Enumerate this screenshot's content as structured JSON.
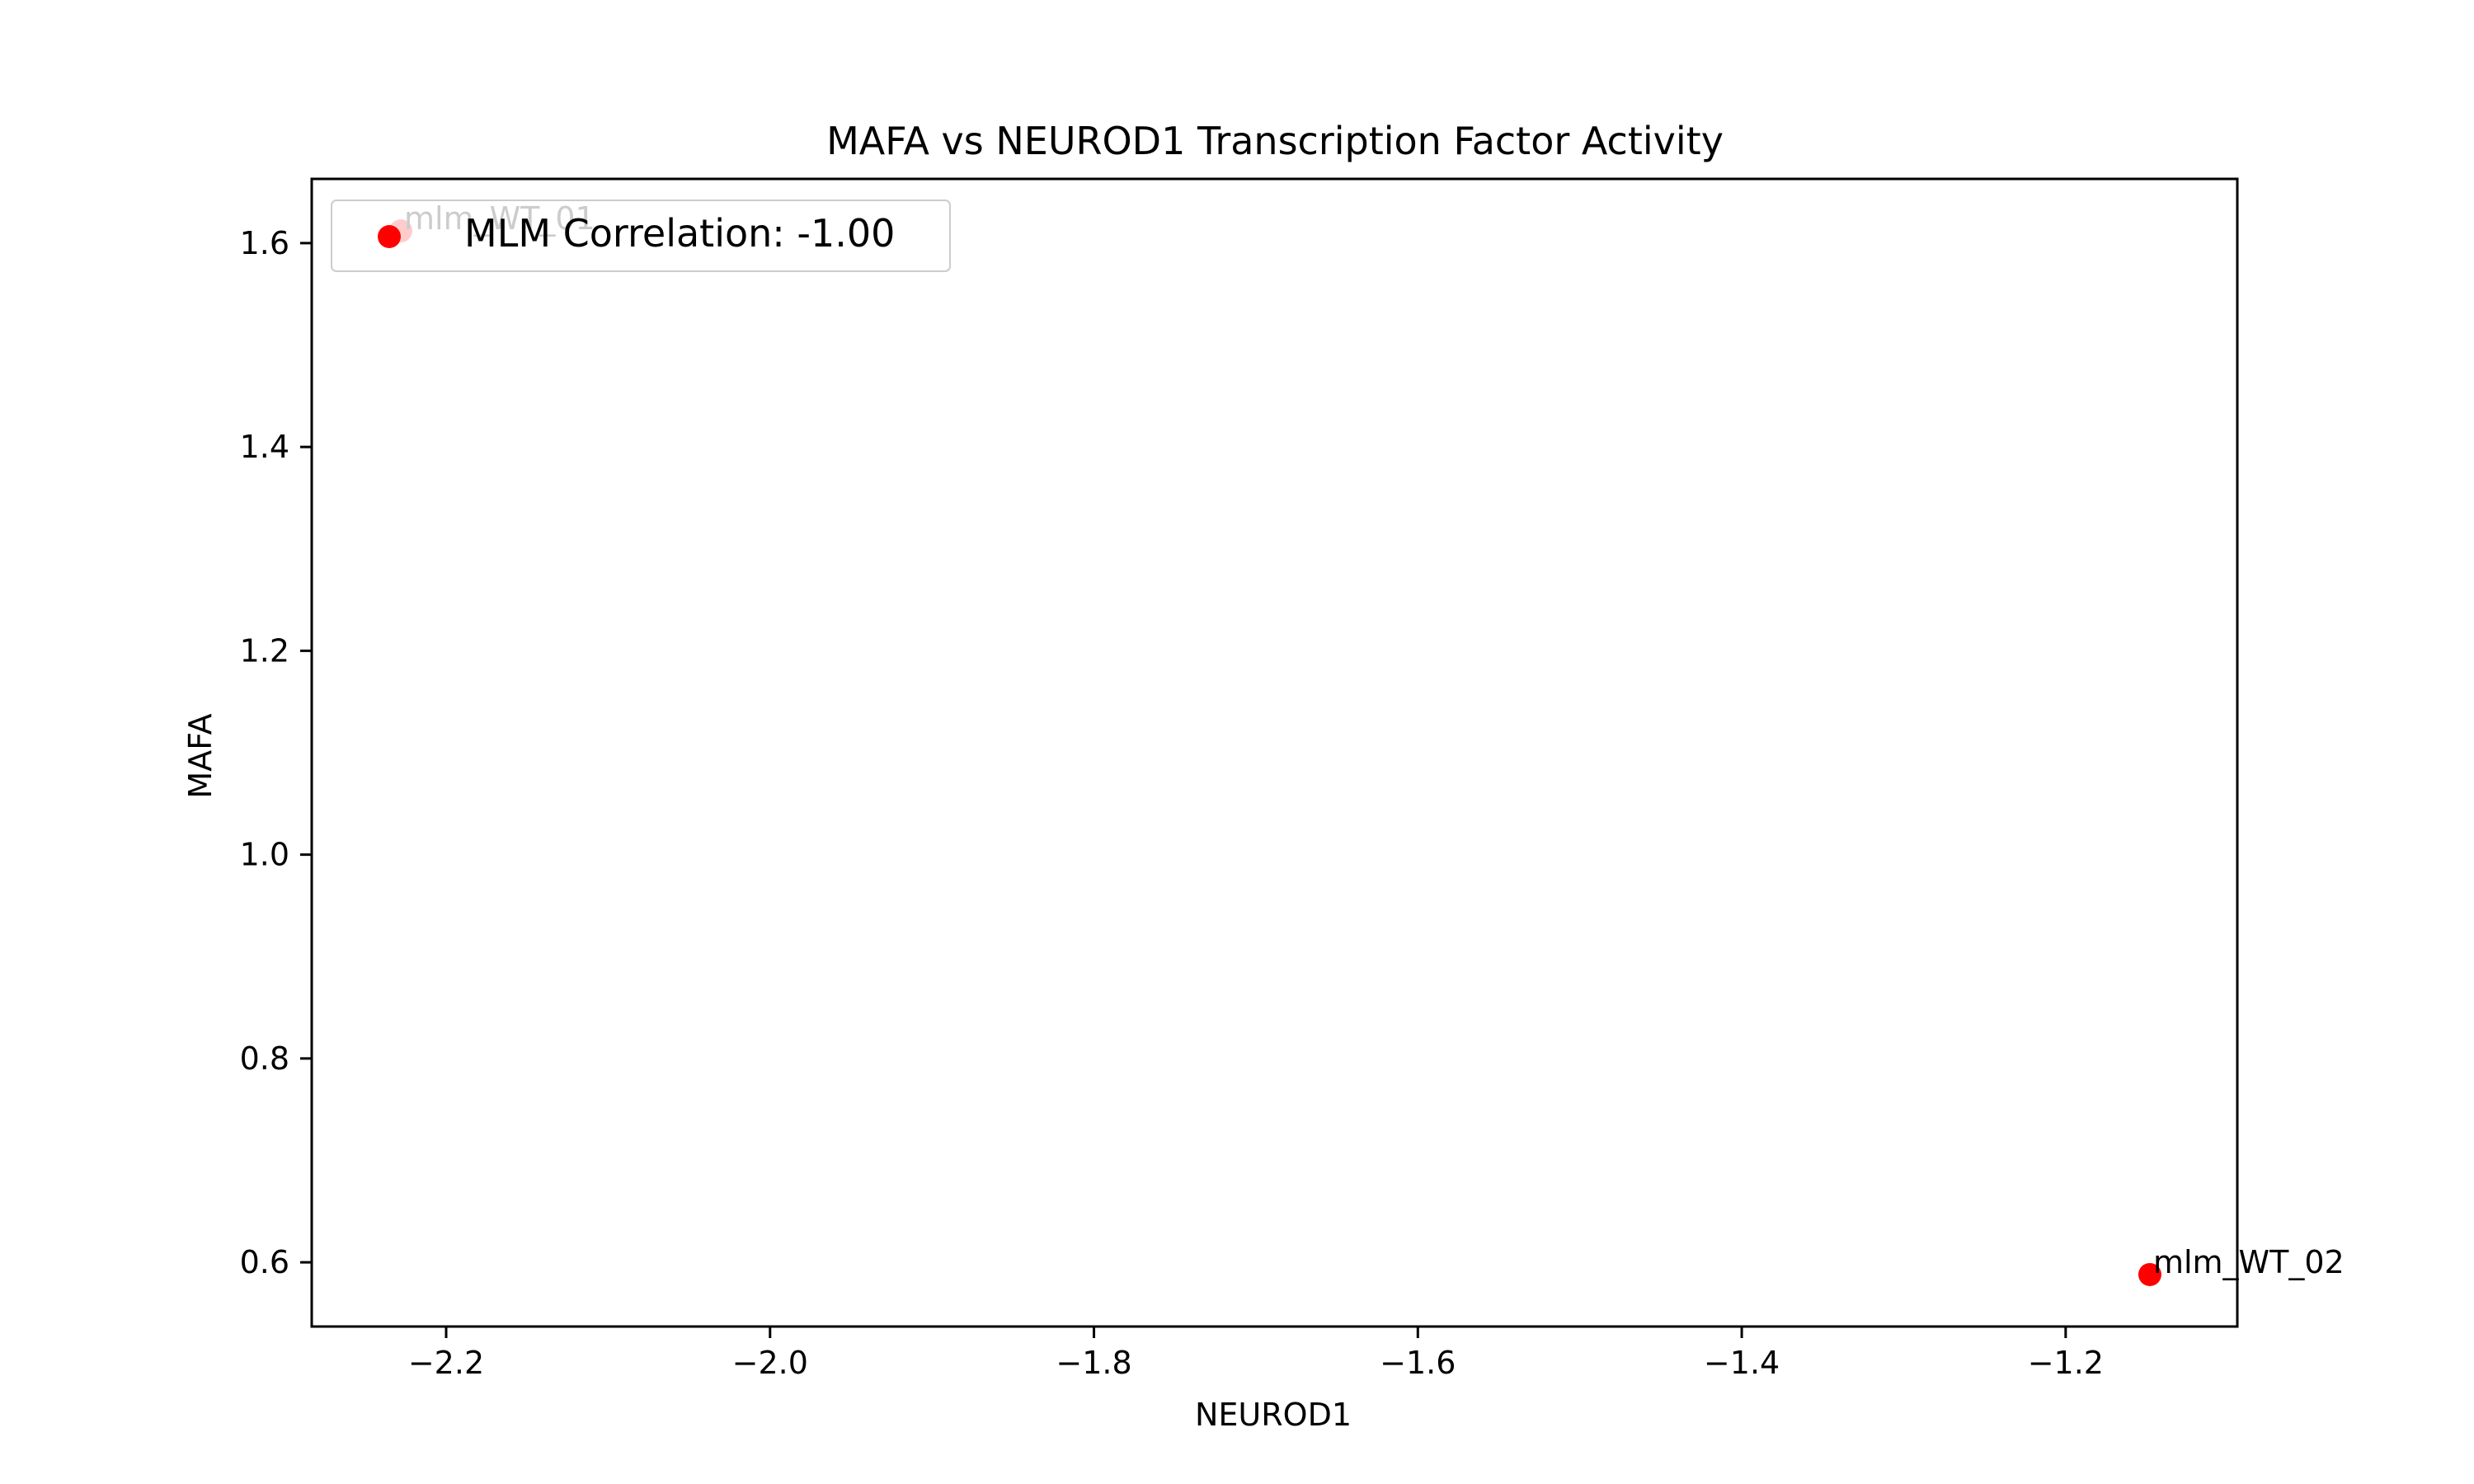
{
  "chart_data": {
    "type": "scatter",
    "title": "MAFA vs NEUROD1 Transcription Factor Activity",
    "xlabel": "NEUROD1",
    "ylabel": "MAFA",
    "xlim": [
      -2.283,
      -1.094
    ],
    "ylim": [
      0.537,
      1.663
    ],
    "x_ticks": [
      -2.2,
      -2.0,
      -1.8,
      -1.6,
      -1.4,
      -1.2
    ],
    "x_tick_labels": [
      "−2.2",
      "−2.0",
      "−1.8",
      "−1.6",
      "−1.4",
      "−1.2"
    ],
    "y_ticks": [
      0.6,
      0.8,
      1.0,
      1.2,
      1.4,
      1.6
    ],
    "y_tick_labels": [
      "0.6",
      "0.8",
      "1.0",
      "1.2",
      "1.4",
      "1.6"
    ],
    "grid": false,
    "legend_position": "top-left",
    "series": [
      {
        "name": "MLM Correlation: -1.00",
        "color": "#ff0000",
        "marker": "circle",
        "points": [
          {
            "x": -2.228,
            "y": 1.612,
            "label": "mlm_WT_01"
          },
          {
            "x": -1.148,
            "y": 0.588,
            "label": "mlm_WT_02"
          }
        ]
      }
    ]
  }
}
